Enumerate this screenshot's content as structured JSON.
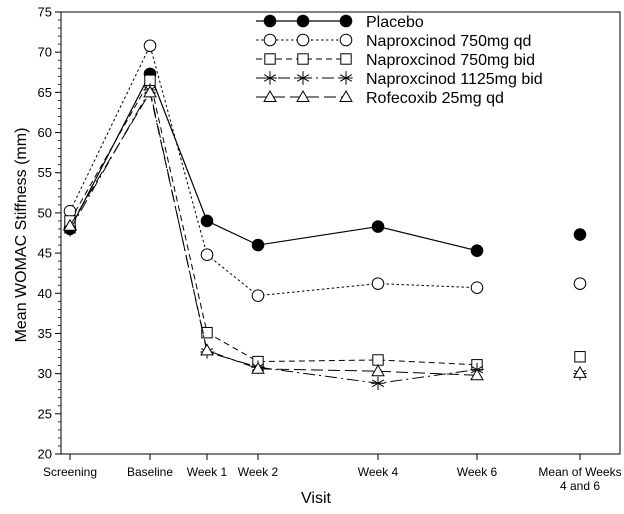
{
  "chart_data": {
    "type": "line",
    "xlabel": "Visit",
    "ylabel": "Mean WOMAC Stiffness (mm)",
    "ylim": [
      20,
      75
    ],
    "yticks": [
      20,
      25,
      30,
      35,
      40,
      45,
      50,
      55,
      60,
      65,
      70,
      75
    ],
    "categories": [
      "Screening",
      "Baseline",
      "Week 1",
      "Week 2",
      "Week 4",
      "Week 6",
      "Mean of Weeks 4 and 6"
    ],
    "category_lines": [
      [
        "Screening"
      ],
      [
        "Baseline"
      ],
      [
        "Week 1"
      ],
      [
        "Week 2"
      ],
      [
        "Week 4"
      ],
      [
        "Week 6"
      ],
      [
        "Mean of Weeks",
        "4 and 6"
      ]
    ],
    "grid": false,
    "legend_position": "top-right",
    "series": [
      {
        "name": "Placebo",
        "marker": "filled-circle",
        "line_style": "solid",
        "connected_until": 5,
        "values": [
          48.0,
          67.3,
          49.0,
          46.0,
          48.3,
          45.3,
          47.3
        ]
      },
      {
        "name": "Naproxcinod 750mg qd",
        "marker": "open-circle",
        "line_style": "dotted",
        "connected_until": 5,
        "values": [
          50.2,
          70.8,
          44.8,
          39.7,
          41.2,
          40.7,
          41.2
        ]
      },
      {
        "name": "Naproxcinod 750mg bid",
        "marker": "open-square",
        "line_style": "dashed",
        "connected_until": 5,
        "values": [
          49.0,
          66.5,
          35.1,
          31.5,
          31.7,
          31.1,
          32.1
        ]
      },
      {
        "name": "Naproxcinod 1125mg bid",
        "marker": "asterisk",
        "line_style": "long-dash-dot",
        "connected_until": 5,
        "values": [
          47.9,
          65.3,
          32.7,
          30.8,
          28.8,
          30.5,
          30.0
        ]
      },
      {
        "name": "Rofecoxib 25mg qd",
        "marker": "open-triangle",
        "line_style": "long-dash",
        "connected_until": 5,
        "values": [
          48.4,
          65.0,
          32.9,
          30.6,
          30.3,
          29.8,
          30.1
        ]
      }
    ]
  }
}
